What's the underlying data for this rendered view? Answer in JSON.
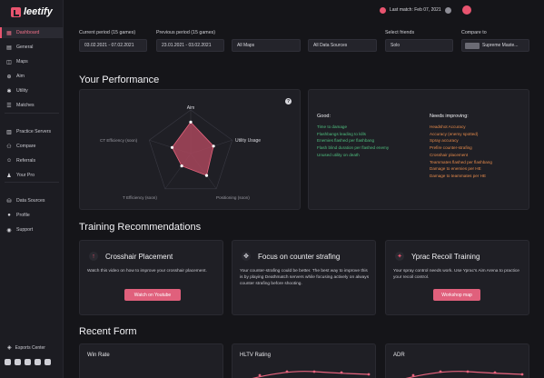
{
  "app": {
    "logo_text": "leetify"
  },
  "sidebar": {
    "items": [
      {
        "label": "Dashboard",
        "icon": "dashboard-icon",
        "glyph": "▦",
        "active": true
      },
      {
        "label": "General",
        "icon": "general-icon",
        "glyph": "▤"
      },
      {
        "label": "Maps",
        "icon": "map-icon",
        "glyph": "◫"
      },
      {
        "label": "Aim",
        "icon": "crosshair-icon",
        "glyph": "⊕"
      },
      {
        "label": "Utility",
        "icon": "utility-icon",
        "glyph": "✱"
      },
      {
        "label": "Matches",
        "icon": "matches-icon",
        "glyph": "☰"
      },
      {
        "label": "Practice Servers",
        "icon": "server-icon",
        "glyph": "▥"
      },
      {
        "label": "Compare",
        "icon": "compare-icon",
        "glyph": "⚇"
      },
      {
        "label": "Referrals",
        "icon": "referrals-icon",
        "glyph": "☺"
      },
      {
        "label": "Your Pro",
        "icon": "pro-icon",
        "glyph": "♟"
      },
      {
        "label": "Data Sources",
        "icon": "data-sources-icon",
        "glyph": "⛁"
      },
      {
        "label": "Profile",
        "icon": "profile-icon",
        "glyph": "●"
      },
      {
        "label": "Support",
        "icon": "support-icon",
        "glyph": "◉"
      }
    ],
    "esports_label": "Esports Center"
  },
  "topbar": {
    "last_match": "Last match: Feb 07, 2021"
  },
  "filters": {
    "current_label": "Current period (15 games)",
    "current_value": "03.02.2021 - 07.02.2021",
    "previous_label": "Previous period (15 games)",
    "previous_value": "23.01.2021 - 03.02.2021",
    "maps_value": "All Maps",
    "sources_value": "All Data Sources",
    "friends_label": "Select friends",
    "friends_value": "Solo",
    "compare_label": "Compare to",
    "compare_value": "Supreme Maste..."
  },
  "performance": {
    "heading": "Your Performance",
    "radar_labels": {
      "aim": "Aim",
      "utility": "Utility Usage",
      "positioning": "Positioning (soon)",
      "t": "T Efficiency (soon)",
      "ct": "CT Efficiency (soon)"
    },
    "radar_values": [
      0.72,
      0.55,
      0.62,
      0.35,
      0.45
    ],
    "good_title": "Good:",
    "good": [
      "Time to damage",
      "Flashbangs leading to kills",
      "Enemies flashed per flashbang",
      "Flash blind duration per flashed enemy",
      "Unused utility on death"
    ],
    "improve_title": "Needs improving:",
    "improve": [
      "Headshot Accuracy",
      "Accuracy (enemy spotted)",
      "Spray accuracy",
      "Prefire counter-strafing",
      "Crosshair placement",
      "Teammates flashed per flashbang",
      "Damage to enemies per HE",
      "Damage to teammates per HE"
    ]
  },
  "training": {
    "heading": "Training Recommendations",
    "cards": [
      {
        "title": "Crosshair Placement",
        "text": "Watch this video on how to improve your crosshair placement.",
        "button": "Watch on Youtube",
        "icon": "arrow-up-icon",
        "glyph": "↑"
      },
      {
        "title": "Focus on counter strafing",
        "text": "Your counter-strafing could be better. The best way to improve this is by playing Deathmatch servers while focusing actively on always counter strafing before shooting.",
        "button": "Practice servers",
        "icon": "strafe-icon",
        "glyph": "✥"
      },
      {
        "title": "Yprac Recoil Training",
        "text": "Your spray control needs work. Use Yprac's Aim Arena to practice your recoil control.",
        "button": "Workshop map",
        "icon": "yprac-icon",
        "glyph": "✦"
      }
    ]
  },
  "recent_form": {
    "heading": "Recent Form",
    "cards": [
      "Win Rate",
      "HLTV Rating",
      "ADR"
    ]
  }
}
